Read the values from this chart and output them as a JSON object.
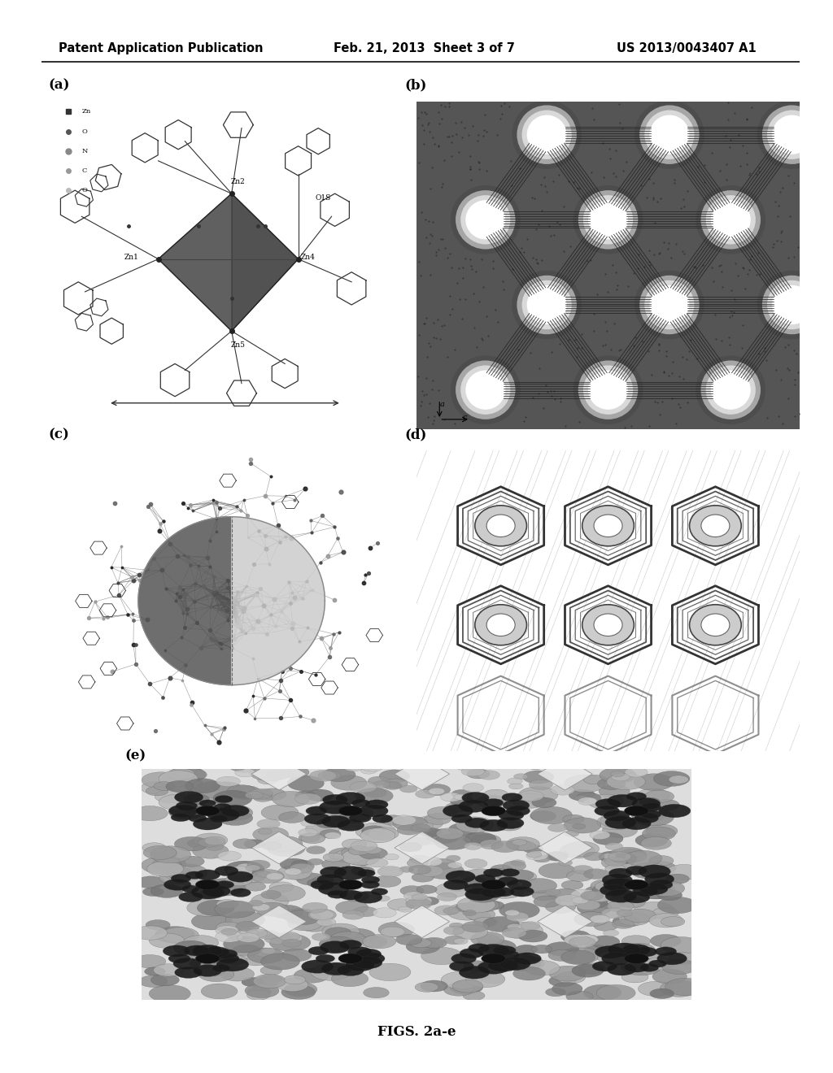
{
  "background_color": "#ffffff",
  "header_left": "Patent Application Publication",
  "header_center": "Feb. 21, 2013  Sheet 3 of 7",
  "header_right": "US 2013/0043407 A1",
  "header_fontsize": 10.5,
  "caption": "FIGS. 2a-e",
  "caption_fontsize": 12,
  "panel_label_fontsize": 12,
  "panel_rects": {
    "a": [
      0.07,
      0.6,
      0.4,
      0.305
    ],
    "b": [
      0.5,
      0.6,
      0.46,
      0.305
    ],
    "c": [
      0.07,
      0.3,
      0.4,
      0.28
    ],
    "d": [
      0.5,
      0.3,
      0.46,
      0.28
    ],
    "e": [
      0.17,
      0.068,
      0.66,
      0.215
    ]
  }
}
